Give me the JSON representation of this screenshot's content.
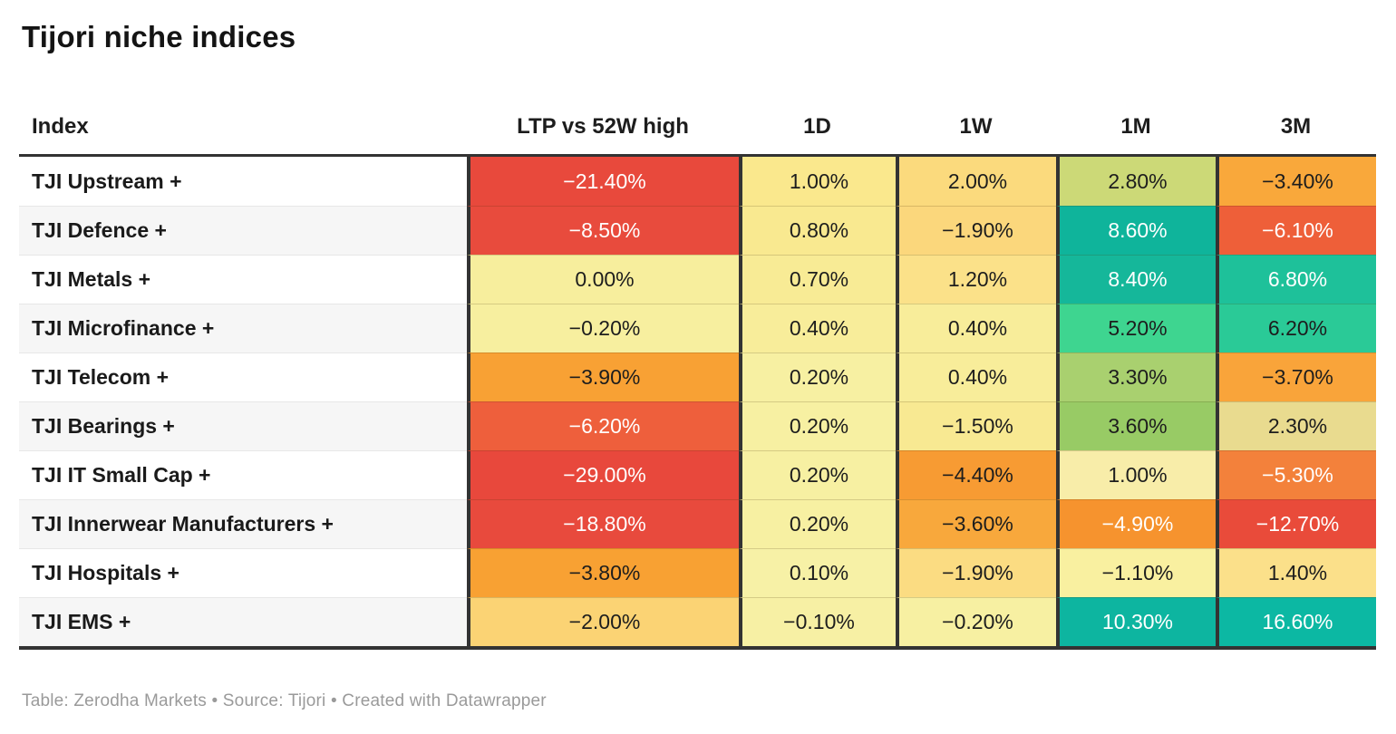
{
  "title": "Tijori niche indices",
  "columns": [
    "Index",
    "LTP vs 52W high",
    "1D",
    "1W",
    "1M",
    "3M"
  ],
  "rows": [
    {
      "name": "TJI Upstream +",
      "cells": [
        {
          "v": "−21.40%",
          "bg": "#e8493c",
          "fg": "#ffffff"
        },
        {
          "v": "1.00%",
          "bg": "#fae88d",
          "fg": "#1d1d1d"
        },
        {
          "v": "2.00%",
          "bg": "#fbda7d",
          "fg": "#1d1d1d"
        },
        {
          "v": "2.80%",
          "bg": "#ccd977",
          "fg": "#1d1d1d"
        },
        {
          "v": "−3.40%",
          "bg": "#f9a83b",
          "fg": "#1d1d1d"
        }
      ]
    },
    {
      "name": "TJI Defence +",
      "cells": [
        {
          "v": "−8.50%",
          "bg": "#e84b3d",
          "fg": "#ffffff"
        },
        {
          "v": "0.80%",
          "bg": "#f9e990",
          "fg": "#1d1d1d"
        },
        {
          "v": "−1.90%",
          "bg": "#fbd77c",
          "fg": "#1d1d1d"
        },
        {
          "v": "8.60%",
          "bg": "#0fb49b",
          "fg": "#ffffff"
        },
        {
          "v": "−6.10%",
          "bg": "#ee5f39",
          "fg": "#ffffff"
        }
      ]
    },
    {
      "name": "TJI Metals +",
      "cells": [
        {
          "v": "0.00%",
          "bg": "#f7ee9d",
          "fg": "#1d1d1d"
        },
        {
          "v": "0.70%",
          "bg": "#f8eb95",
          "fg": "#1d1d1d"
        },
        {
          "v": "1.20%",
          "bg": "#fbe189",
          "fg": "#1d1d1d"
        },
        {
          "v": "8.40%",
          "bg": "#15b79a",
          "fg": "#ffffff"
        },
        {
          "v": "6.80%",
          "bg": "#1ec19a",
          "fg": "#ffffff"
        }
      ]
    },
    {
      "name": "TJI Microfinance +",
      "cells": [
        {
          "v": "−0.20%",
          "bg": "#f7ef9f",
          "fg": "#1d1d1d"
        },
        {
          "v": "0.40%",
          "bg": "#f8ed9a",
          "fg": "#1d1d1d"
        },
        {
          "v": "0.40%",
          "bg": "#f8ed9a",
          "fg": "#1d1d1d"
        },
        {
          "v": "5.20%",
          "bg": "#3ed590",
          "fg": "#1d1d1d"
        },
        {
          "v": "6.20%",
          "bg": "#2aca97",
          "fg": "#1d1d1d"
        }
      ]
    },
    {
      "name": "TJI Telecom +",
      "cells": [
        {
          "v": "−3.90%",
          "bg": "#f8a134",
          "fg": "#1d1d1d"
        },
        {
          "v": "0.20%",
          "bg": "#f7f0a2",
          "fg": "#1d1d1d"
        },
        {
          "v": "0.40%",
          "bg": "#f8ed9a",
          "fg": "#1d1d1d"
        },
        {
          "v": "3.30%",
          "bg": "#a9d06f",
          "fg": "#1d1d1d"
        },
        {
          "v": "−3.70%",
          "bg": "#f9a43a",
          "fg": "#1d1d1d"
        }
      ]
    },
    {
      "name": "TJI Bearings +",
      "cells": [
        {
          "v": "−6.20%",
          "bg": "#ee5f3c",
          "fg": "#ffffff"
        },
        {
          "v": "0.20%",
          "bg": "#f7f0a2",
          "fg": "#1d1d1d"
        },
        {
          "v": "−1.50%",
          "bg": "#f8e992",
          "fg": "#1d1d1d"
        },
        {
          "v": "3.60%",
          "bg": "#98cb65",
          "fg": "#1d1d1d"
        },
        {
          "v": "2.30%",
          "bg": "#e9db8f",
          "fg": "#1d1d1d"
        }
      ]
    },
    {
      "name": "TJI IT Small Cap +",
      "cells": [
        {
          "v": "−29.00%",
          "bg": "#e8483c",
          "fg": "#ffffff"
        },
        {
          "v": "0.20%",
          "bg": "#f7f0a2",
          "fg": "#1d1d1d"
        },
        {
          "v": "−4.40%",
          "bg": "#f79b33",
          "fg": "#1d1d1d"
        },
        {
          "v": "1.00%",
          "bg": "#f8eda9",
          "fg": "#1d1d1d"
        },
        {
          "v": "−5.30%",
          "bg": "#f3813b",
          "fg": "#ffffff"
        }
      ]
    },
    {
      "name": "TJI Innerwear Manufacturers +",
      "cells": [
        {
          "v": "−18.80%",
          "bg": "#e84a3d",
          "fg": "#ffffff"
        },
        {
          "v": "0.20%",
          "bg": "#f7f0a2",
          "fg": "#1d1d1d"
        },
        {
          "v": "−3.60%",
          "bg": "#f8a83c",
          "fg": "#1d1d1d"
        },
        {
          "v": "−4.90%",
          "bg": "#f6932e",
          "fg": "#ffffff"
        },
        {
          "v": "−12.70%",
          "bg": "#e94b3a",
          "fg": "#ffffff"
        }
      ]
    },
    {
      "name": "TJI Hospitals +",
      "cells": [
        {
          "v": "−3.80%",
          "bg": "#f8a133",
          "fg": "#1d1d1d"
        },
        {
          "v": "0.10%",
          "bg": "#f7f1a6",
          "fg": "#1d1d1d"
        },
        {
          "v": "−1.90%",
          "bg": "#fbdc82",
          "fg": "#1d1d1d"
        },
        {
          "v": "−1.10%",
          "bg": "#f9f0a0",
          "fg": "#1d1d1d"
        },
        {
          "v": "1.40%",
          "bg": "#fbe08a",
          "fg": "#1d1d1d"
        }
      ]
    },
    {
      "name": "TJI EMS +",
      "cells": [
        {
          "v": "−2.00%",
          "bg": "#fbd374",
          "fg": "#1d1d1d"
        },
        {
          "v": "−0.10%",
          "bg": "#f7f0a4",
          "fg": "#1d1d1d"
        },
        {
          "v": "−0.20%",
          "bg": "#f7f0a2",
          "fg": "#1d1d1d"
        },
        {
          "v": "10.30%",
          "bg": "#0db5a0",
          "fg": "#ffffff"
        },
        {
          "v": "16.60%",
          "bg": "#0cb8a3",
          "fg": "#ffffff"
        }
      ]
    }
  ],
  "footer": {
    "text": "Table: Zerodha Markets • Source: Tijori • Created with Datawrapper"
  },
  "style": {
    "border_color": "#333333",
    "alt_row_bg": "#f6f6f6",
    "footer_color": "#9a9a9a"
  },
  "chart_data": {
    "type": "table",
    "title": "Tijori niche indices",
    "columns": [
      "Index",
      "LTP vs 52W high",
      "1D",
      "1W",
      "1M",
      "3M"
    ],
    "unit": "percent",
    "heatmap": true,
    "rows": [
      {
        "index": "TJI Upstream +",
        "ltp_vs_52w_high": -21.4,
        "d1": 1.0,
        "w1": 2.0,
        "m1": 2.8,
        "m3": -3.4
      },
      {
        "index": "TJI Defence +",
        "ltp_vs_52w_high": -8.5,
        "d1": 0.8,
        "w1": -1.9,
        "m1": 8.6,
        "m3": -6.1
      },
      {
        "index": "TJI Metals +",
        "ltp_vs_52w_high": 0.0,
        "d1": 0.7,
        "w1": 1.2,
        "m1": 8.4,
        "m3": 6.8
      },
      {
        "index": "TJI Microfinance +",
        "ltp_vs_52w_high": -0.2,
        "d1": 0.4,
        "w1": 0.4,
        "m1": 5.2,
        "m3": 6.2
      },
      {
        "index": "TJI Telecom +",
        "ltp_vs_52w_high": -3.9,
        "d1": 0.2,
        "w1": 0.4,
        "m1": 3.3,
        "m3": -3.7
      },
      {
        "index": "TJI Bearings +",
        "ltp_vs_52w_high": -6.2,
        "d1": 0.2,
        "w1": -1.5,
        "m1": 3.6,
        "m3": 2.3
      },
      {
        "index": "TJI IT Small Cap +",
        "ltp_vs_52w_high": -29.0,
        "d1": 0.2,
        "w1": -4.4,
        "m1": 1.0,
        "m3": -5.3
      },
      {
        "index": "TJI Innerwear Manufacturers +",
        "ltp_vs_52w_high": -18.8,
        "d1": 0.2,
        "w1": -3.6,
        "m1": -4.9,
        "m3": -12.7
      },
      {
        "index": "TJI Hospitals +",
        "ltp_vs_52w_high": -3.8,
        "d1": 0.1,
        "w1": -1.9,
        "m1": -1.1,
        "m3": 1.4
      },
      {
        "index": "TJI EMS +",
        "ltp_vs_52w_high": -2.0,
        "d1": -0.1,
        "w1": -0.2,
        "m1": 10.3,
        "m3": 16.6
      }
    ],
    "color_scale": "red-yellow-green-teal diverging, negative=red/orange, near-zero=pale yellow, positive=green/teal"
  }
}
